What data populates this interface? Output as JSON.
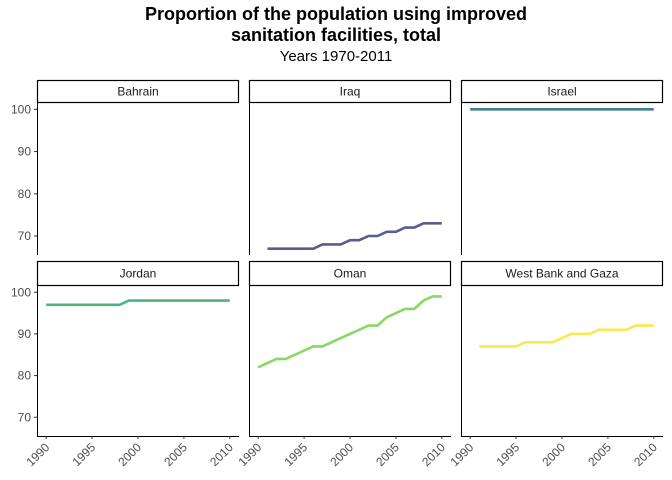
{
  "chart_data": {
    "type": "line",
    "title": "Proportion of the population using improved\nsanitation facilities, total",
    "subtitle": "Years 1970-2011",
    "xlabel": "",
    "ylabel": "",
    "xlim": [
      1989,
      2011
    ],
    "ylim": [
      65.5,
      101.5
    ],
    "x_ticks": [
      1990,
      1995,
      2000,
      2005,
      2010
    ],
    "y_ticks": [
      70,
      80,
      90,
      100
    ],
    "facets": [
      {
        "name": "Bahrain",
        "color": "#440154",
        "x": [],
        "values": []
      },
      {
        "name": "Iraq",
        "color": "#5c5c8c",
        "x": [
          1991,
          1992,
          1993,
          1994,
          1995,
          1996,
          1997,
          1998,
          1999,
          2000,
          2001,
          2002,
          2003,
          2004,
          2005,
          2006,
          2007,
          2008,
          2009,
          2010
        ],
        "values": [
          67,
          67,
          67,
          67,
          67,
          67,
          68,
          68,
          68,
          69,
          69,
          70,
          70,
          71,
          71,
          72,
          72,
          73,
          73,
          73
        ]
      },
      {
        "name": "Israel",
        "color": "#417f8d",
        "x": [
          1990,
          2010
        ],
        "values": [
          100,
          100
        ]
      },
      {
        "name": "Jordan",
        "color": "#4fb287",
        "x": [
          1990,
          1991,
          1992,
          1993,
          1994,
          1995,
          1996,
          1997,
          1998,
          1999,
          2000,
          2001,
          2002,
          2003,
          2004,
          2005,
          2006,
          2007,
          2008,
          2009,
          2010
        ],
        "values": [
          97,
          97,
          97,
          97,
          97,
          97,
          97,
          97,
          97,
          98,
          98,
          98,
          98,
          98,
          98,
          98,
          98,
          98,
          98,
          98,
          98
        ]
      },
      {
        "name": "Oman",
        "color": "#8bd765",
        "x": [
          1990,
          1991,
          1992,
          1993,
          1994,
          1995,
          1996,
          1997,
          1998,
          1999,
          2000,
          2001,
          2002,
          2003,
          2004,
          2005,
          2006,
          2007,
          2008,
          2009,
          2010
        ],
        "values": [
          82,
          83,
          84,
          84,
          85,
          86,
          87,
          87,
          88,
          89,
          90,
          91,
          92,
          92,
          94,
          95,
          96,
          96,
          98,
          99,
          99
        ]
      },
      {
        "name": "West Bank and Gaza",
        "color": "#f6e951",
        "x": [
          1991,
          1992,
          1993,
          1994,
          1995,
          1996,
          1997,
          1998,
          1999,
          2000,
          2001,
          2002,
          2003,
          2004,
          2005,
          2006,
          2007,
          2008,
          2009,
          2010
        ],
        "values": [
          87,
          87,
          87,
          87,
          87,
          88,
          88,
          88,
          88,
          89,
          90,
          90,
          90,
          91,
          91,
          91,
          91,
          92,
          92,
          92
        ]
      }
    ]
  }
}
